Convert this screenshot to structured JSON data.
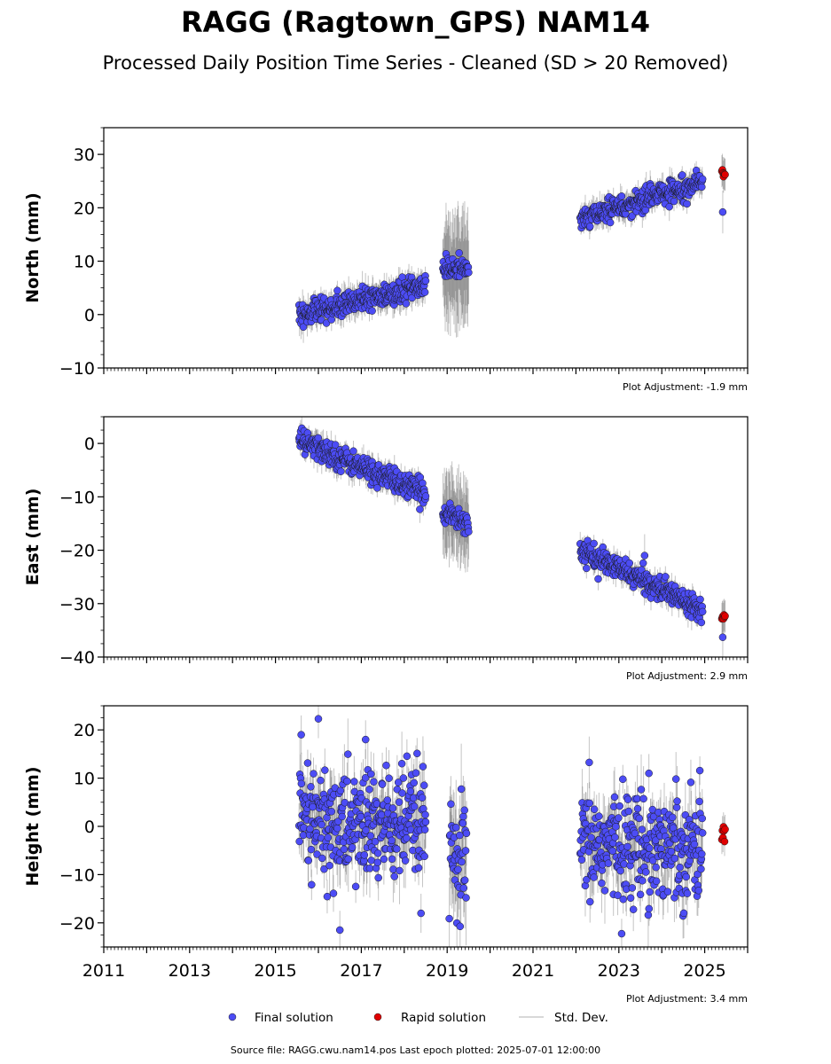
{
  "title": "RAGG (Ragtown_GPS) NAM14",
  "subtitle": "Processed Daily Position Time Series - Cleaned (SD > 20 Removed)",
  "footer": "Source file: RAGG.cwu.nam14.pos  Last epoch plotted: 2025-07-01 12:00:00",
  "colors": {
    "final": "#4c4cf5",
    "rapid": "#e00000",
    "std": "#555555",
    "std_legend": "#cccccc"
  },
  "legend": {
    "final_label": "Final solution",
    "rapid_label": "Rapid solution",
    "std_label": "Std. Dev.",
    "placement": "bottom-center"
  },
  "chart_data": [
    {
      "type": "scatter",
      "ylabel": "North (mm)",
      "xlim": [
        2011,
        2026
      ],
      "ylim": [
        -10,
        35
      ],
      "yticks": [
        -10,
        0,
        10,
        20,
        30
      ],
      "ytick_labels": [
        "−10",
        "0",
        "10",
        "20",
        "30"
      ],
      "adjustment": "Plot Adjustment: -1.9 mm",
      "segments": [
        {
          "x": [
            2015.55,
            2018.5
          ],
          "y": [
            0,
            5.5
          ],
          "noise": 1.2,
          "sd": 2
        },
        {
          "x": [
            2018.9,
            2019.5
          ],
          "y": [
            8.5,
            8.5
          ],
          "noise": 1.0,
          "sd": 8
        },
        {
          "x": [
            2022.1,
            2024.95
          ],
          "y": [
            18,
            25
          ],
          "noise": 1.0,
          "sd": 1.8
        }
      ],
      "rapid": {
        "x": [
          2025.4,
          2025.55
        ],
        "y": [
          25.8,
          27.2
        ]
      },
      "outliers": [
        {
          "x": 2025.42,
          "y": 19.2
        }
      ]
    },
    {
      "type": "scatter",
      "ylabel": "East (mm)",
      "xlim": [
        2011,
        2026
      ],
      "ylim": [
        -40,
        5
      ],
      "yticks": [
        -40,
        -30,
        -20,
        -10,
        0
      ],
      "ytick_labels": [
        "−40",
        "−30",
        "−20",
        "−10",
        "0"
      ],
      "adjustment": "Plot Adjustment: 2.9 mm",
      "segments": [
        {
          "x": [
            2015.55,
            2018.5
          ],
          "y": [
            0.5,
            -9.5
          ],
          "noise": 1.1,
          "sd": 1.8
        },
        {
          "x": [
            2018.9,
            2019.5
          ],
          "y": [
            -12.5,
            -15
          ],
          "noise": 1.1,
          "sd": 6
        },
        {
          "x": [
            2022.1,
            2024.95
          ],
          "y": [
            -20,
            -31
          ],
          "noise": 1.0,
          "sd": 1.6
        }
      ],
      "rapid": {
        "x": [
          2025.4,
          2025.55
        ],
        "y": [
          -33,
          -32
        ]
      },
      "outliers": [
        {
          "x": 2025.42,
          "y": -36.3
        },
        {
          "x": 2023.6,
          "y": -21
        }
      ]
    },
    {
      "type": "scatter",
      "ylabel": "Height (mm)",
      "xlim": [
        2011,
        2026
      ],
      "ylim": [
        -25,
        25
      ],
      "yticks": [
        -20,
        -10,
        0,
        10,
        20
      ],
      "ytick_labels": [
        "−20",
        "−10",
        "0",
        "10",
        "20"
      ],
      "xticks": [
        2011,
        2013,
        2015,
        2017,
        2019,
        2021,
        2023,
        2025
      ],
      "xtick_labels": [
        "2011",
        "2013",
        "2015",
        "2017",
        "2019",
        "2021",
        "2023",
        "2025"
      ],
      "adjustment": "Plot Adjustment: 3.4 mm",
      "segments": [
        {
          "x": [
            2015.55,
            2018.5
          ],
          "y": [
            0,
            0
          ],
          "noise": 6,
          "sd": 5
        },
        {
          "x": [
            2019.05,
            2019.45
          ],
          "y": [
            -8,
            -8
          ],
          "noise": 6,
          "sd": 7
        },
        {
          "x": [
            2022.1,
            2024.95
          ],
          "y": [
            -4,
            -4
          ],
          "noise": 5.5,
          "sd": 5
        }
      ],
      "rapid": {
        "x": [
          2025.4,
          2025.55
        ],
        "y": [
          -3.5,
          1
        ]
      },
      "outliers": [
        {
          "x": 2015.6,
          "y": 19
        },
        {
          "x": 2016.0,
          "y": 22.3
        },
        {
          "x": 2017.1,
          "y": 18
        },
        {
          "x": 2016.5,
          "y": -21.5
        },
        {
          "x": 2023.7,
          "y": 11
        }
      ]
    }
  ]
}
